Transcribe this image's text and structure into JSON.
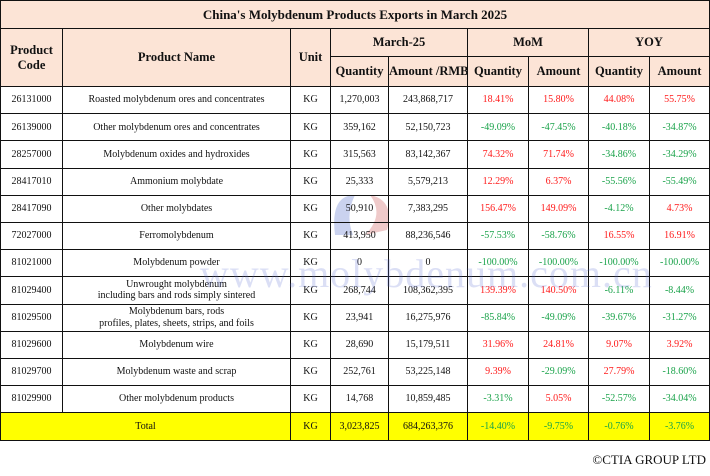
{
  "title": "China's Molybdenum Products Exports in March 2025",
  "headers": {
    "product_code": "Product Code",
    "product_name": "Product Name",
    "unit": "Unit",
    "march": "March-25",
    "mom": "MoM",
    "yoy": "YOY",
    "quantity": "Quantity",
    "amount_rmb": "Amount /RMB",
    "amount": "Amount"
  },
  "rows": [
    {
      "code": "26131000",
      "name": "Roasted molybdenum ores and concentrates",
      "unit": "KG",
      "qty": "1,270,003",
      "amount": "243,868,717",
      "mom_qty": "18.41%",
      "mom_amt": "15.80%",
      "yoy_qty": "44.08%",
      "yoy_amt": "55.75%"
    },
    {
      "code": "26139000",
      "name": "Other molybdenum ores and concentrates",
      "unit": "KG",
      "qty": "359,162",
      "amount": "52,150,723",
      "mom_qty": "-49.09%",
      "mom_amt": "-47.45%",
      "yoy_qty": "-40.18%",
      "yoy_amt": "-34.87%"
    },
    {
      "code": "28257000",
      "name": "Molybdenum oxides and hydroxides",
      "unit": "KG",
      "qty": "315,563",
      "amount": "83,142,367",
      "mom_qty": "74.32%",
      "mom_amt": "71.74%",
      "yoy_qty": "-34.86%",
      "yoy_amt": "-34.29%"
    },
    {
      "code": "28417010",
      "name": "Ammonium molybdate",
      "unit": "KG",
      "qty": "25,333",
      "amount": "5,579,213",
      "mom_qty": "12.29%",
      "mom_amt": "6.37%",
      "yoy_qty": "-55.56%",
      "yoy_amt": "-55.49%"
    },
    {
      "code": "28417090",
      "name": "Other molybdates",
      "unit": "KG",
      "qty": "50,910",
      "amount": "7,383,295",
      "mom_qty": "156.47%",
      "mom_amt": "149.09%",
      "yoy_qty": "-4.12%",
      "yoy_amt": "4.73%"
    },
    {
      "code": "72027000",
      "name": "Ferromolybdenum",
      "unit": "KG",
      "qty": "413,950",
      "amount": "88,236,546",
      "mom_qty": "-57.53%",
      "mom_amt": "-58.76%",
      "yoy_qty": "16.55%",
      "yoy_amt": "16.91%"
    },
    {
      "code": "81021000",
      "name": "Molybdenum powder",
      "unit": "KG",
      "qty": "0",
      "amount": "0",
      "mom_qty": "-100.00%",
      "mom_amt": "-100.00%",
      "yoy_qty": "-100.00%",
      "yoy_amt": "-100.00%"
    },
    {
      "code": "81029400",
      "name": "Unwrought molybdenum\nincluding bars and rods simply sintered",
      "unit": "KG",
      "qty": "268,744",
      "amount": "108,362,395",
      "mom_qty": "139.39%",
      "mom_amt": "140.50%",
      "yoy_qty": "-6.11%",
      "yoy_amt": "-8.44%"
    },
    {
      "code": "81029500",
      "name": "Molybdenum bars, rods\nprofiles, plates, sheets, strips, and foils",
      "unit": "KG",
      "qty": "23,941",
      "amount": "16,275,976",
      "mom_qty": "-85.84%",
      "mom_amt": "-49.09%",
      "yoy_qty": "-39.67%",
      "yoy_amt": "-31.27%"
    },
    {
      "code": "81029600",
      "name": "Molybdenum wire",
      "unit": "KG",
      "qty": "28,690",
      "amount": "15,179,511",
      "mom_qty": "31.96%",
      "mom_amt": "24.81%",
      "yoy_qty": "9.07%",
      "yoy_amt": "3.92%"
    },
    {
      "code": "81029700",
      "name": "Molybdenum waste and scrap",
      "unit": "KG",
      "qty": "252,761",
      "amount": "53,225,148",
      "mom_qty": "9.39%",
      "mom_amt": "-29.09%",
      "yoy_qty": "27.79%",
      "yoy_amt": "-18.60%"
    },
    {
      "code": "81029900",
      "name": "Other molybdenum products",
      "unit": "KG",
      "qty": "14,768",
      "amount": "10,859,485",
      "mom_qty": "-3.31%",
      "mom_amt": "5.05%",
      "yoy_qty": "-52.57%",
      "yoy_amt": "-34.04%"
    }
  ],
  "total": {
    "label": "Total",
    "unit": "KG",
    "qty": "3,023,825",
    "amount": "684,263,376",
    "mom_qty": "-14.40%",
    "mom_amt": "-9.75%",
    "yoy_qty": "-0.76%",
    "yoy_amt": "-3.76%"
  },
  "watermark": "www.molybdenum.com.cn",
  "footer": "©CTIA GROUP LTD",
  "colors": {
    "header_bg": "#fce4d6",
    "total_bg": "#ffff00",
    "positive": "#ff1a1a",
    "negative": "#1aa34a"
  }
}
